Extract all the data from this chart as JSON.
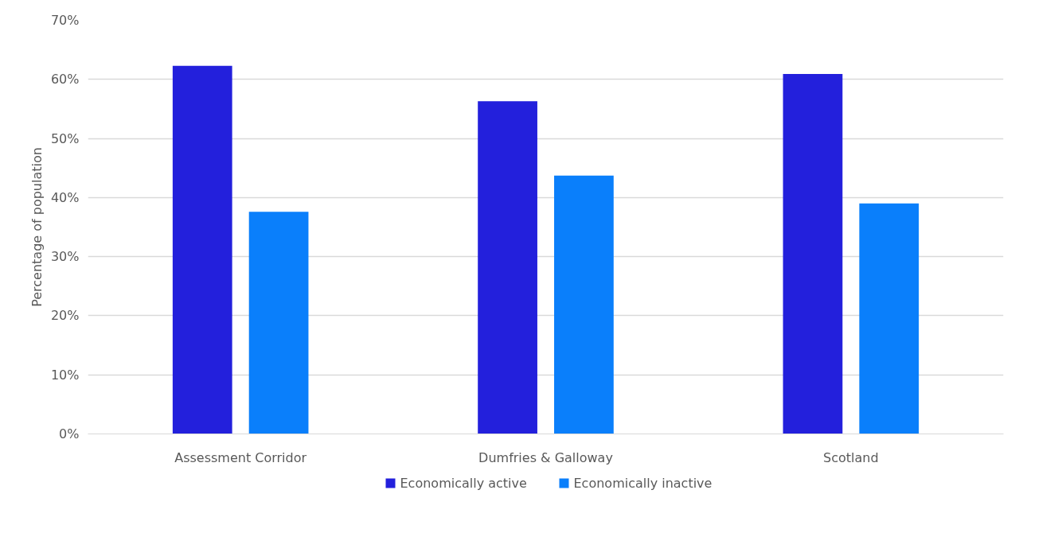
{
  "chart_data": {
    "type": "bar",
    "ylabel": "Percentage of population",
    "categories": [
      "Assessment Corridor",
      "Dumfries & Galloway",
      "Scotland"
    ],
    "series": [
      {
        "name": "Economically active",
        "color": "#2320dc",
        "values": [
          62.3,
          56.3,
          60.9
        ]
      },
      {
        "name": "Economically inactive",
        "color": "#0a7ffb",
        "values": [
          37.6,
          43.7,
          39.0
        ]
      }
    ],
    "ylim": [
      0,
      70
    ],
    "yticks": [
      {
        "value": 0,
        "label": "0%"
      },
      {
        "value": 10,
        "label": "10%"
      },
      {
        "value": 20,
        "label": "20%"
      },
      {
        "value": 30,
        "label": "30%"
      },
      {
        "value": 40,
        "label": "40%"
      },
      {
        "value": 50,
        "label": "50%"
      },
      {
        "value": 60,
        "label": "60%"
      },
      {
        "value": 70,
        "label": "70%"
      }
    ],
    "grid": "y",
    "legend": "bottom"
  }
}
